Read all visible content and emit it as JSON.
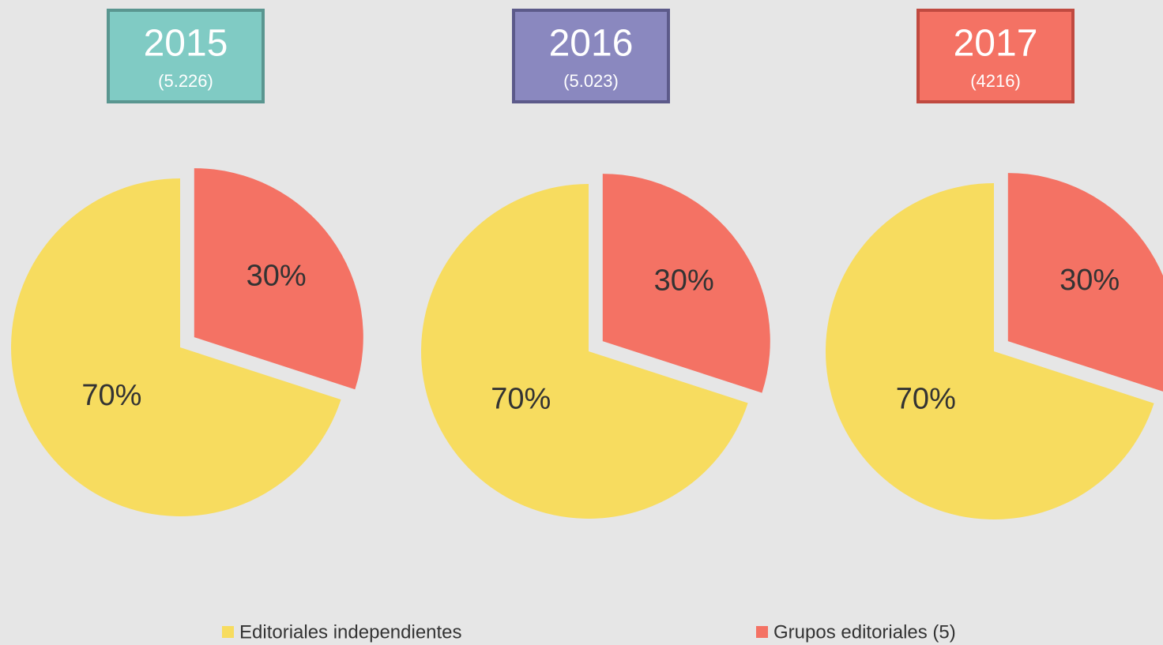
{
  "chart_data": [
    {
      "type": "pie",
      "title": "2015",
      "subtitle": "(5.226)",
      "title_color": "#80cbc4",
      "title_border": "#5a9690",
      "values": [
        70,
        30
      ],
      "value_labels": [
        "70%",
        "30%"
      ],
      "colors": [
        "#f7dc5f",
        "#f47264"
      ]
    },
    {
      "type": "pie",
      "title": "2016",
      "subtitle": "(5.023)",
      "title_color": "#8a88bf",
      "title_border": "#5c5a8a",
      "values": [
        70,
        30
      ],
      "value_labels": [
        "70%",
        "30%"
      ],
      "colors": [
        "#f7dc5f",
        "#f47264"
      ]
    },
    {
      "type": "pie",
      "title": "2017",
      "subtitle": "(4216)",
      "title_color": "#f47264",
      "title_border": "#c04a40",
      "values": [
        70,
        30
      ],
      "value_labels": [
        "70%",
        "30%"
      ],
      "colors": [
        "#f7dc5f",
        "#f47264"
      ]
    }
  ],
  "legend": [
    {
      "name": "Editoriales independientes",
      "color": "#f7dc5f"
    },
    {
      "name": "Grupos editoriales (5)",
      "color": "#f47264"
    }
  ]
}
